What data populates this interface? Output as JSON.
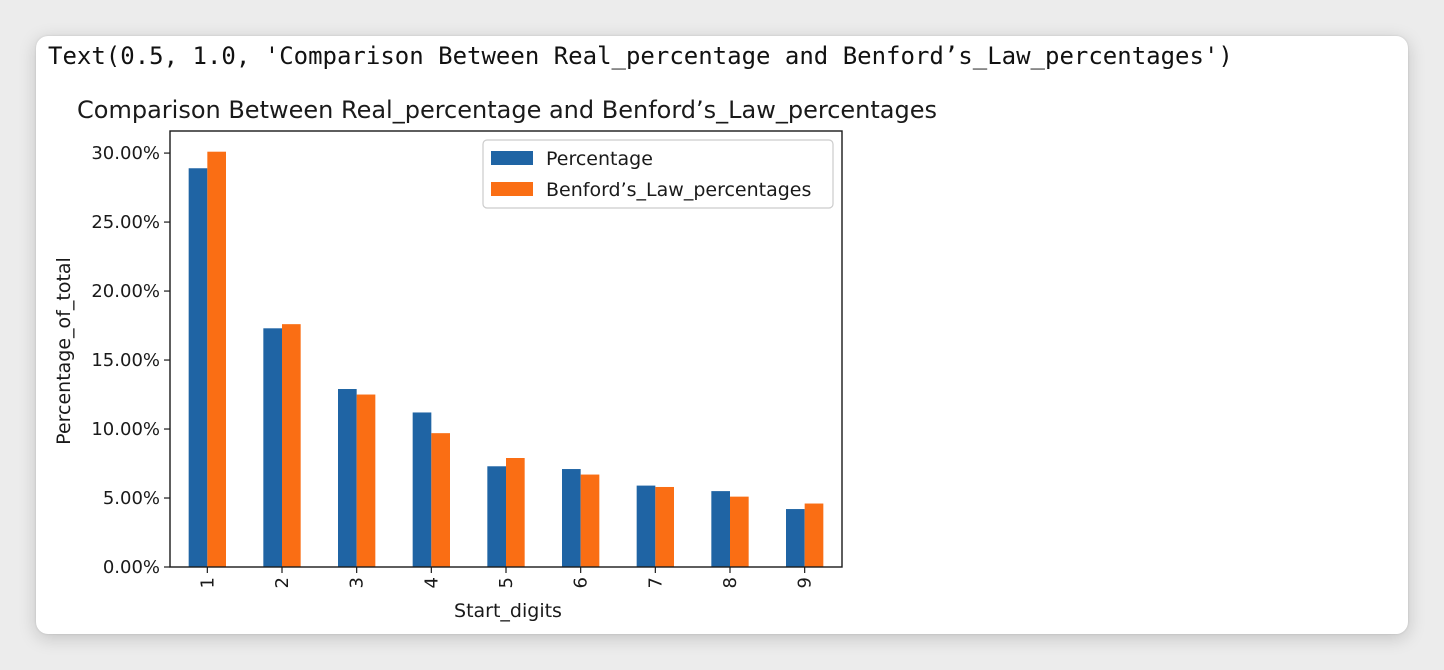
{
  "output_text": "Text(0.5, 1.0, 'Comparison Between Real_percentage and Benford’s_Law_percentages')",
  "chart_data": {
    "type": "bar",
    "title": "Comparison Between Real_percentage and Benford’s_Law_percentages",
    "xlabel": "Start_digits",
    "ylabel": "Percentage_of_total",
    "categories": [
      "1",
      "2",
      "3",
      "4",
      "5",
      "6",
      "7",
      "8",
      "9"
    ],
    "series": [
      {
        "name": "Percentage",
        "color": "#1f64a4",
        "values": [
          28.9,
          17.3,
          12.9,
          11.2,
          7.3,
          7.1,
          5.9,
          5.5,
          4.2
        ]
      },
      {
        "name": "Benford’s_Law_percentages",
        "color": "#fa6e14",
        "values": [
          30.1,
          17.6,
          12.5,
          9.7,
          7.9,
          6.7,
          5.8,
          5.1,
          4.6
        ]
      }
    ],
    "yticks": [
      0,
      5,
      10,
      15,
      20,
      25,
      30
    ],
    "ytick_labels": [
      "0.00%",
      "5.00%",
      "10.00%",
      "15.00%",
      "20.00%",
      "25.00%",
      "30.00%"
    ],
    "ylim": [
      0,
      31.6
    ],
    "legend_position": "upper right",
    "grid": false
  }
}
